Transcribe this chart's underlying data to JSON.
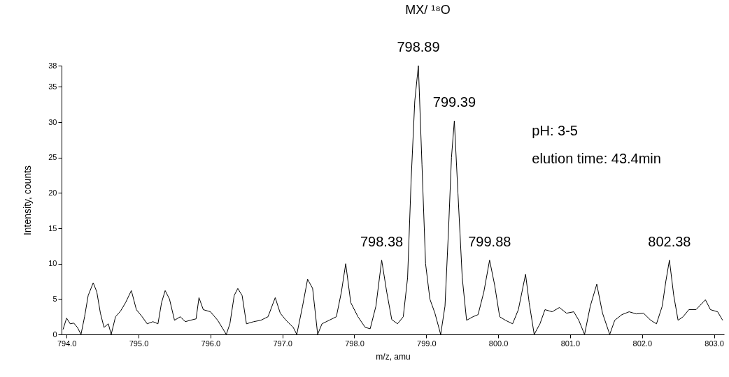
{
  "chart_data": {
    "type": "line",
    "title": "MX/ ¹⁸O",
    "xlabel": "m/z, amu",
    "ylabel": "Intensity, counts",
    "xlim": [
      793.93,
      803.14
    ],
    "ylim": [
      0,
      38
    ],
    "xticks": [
      {
        "value": 794,
        "label": "794.0"
      },
      {
        "value": 795,
        "label": "795.0"
      },
      {
        "value": 796,
        "label": "796.0"
      },
      {
        "value": 797,
        "label": "797.0"
      },
      {
        "value": 798,
        "label": "798.0"
      },
      {
        "value": 799,
        "label": "799.0"
      },
      {
        "value": 800,
        "label": "800.0"
      },
      {
        "value": 801,
        "label": "801.0"
      },
      {
        "value": 802,
        "label": "802.0"
      },
      {
        "value": 803,
        "label": "803.0"
      }
    ],
    "yticks": [
      0,
      5,
      10,
      15,
      20,
      25,
      30,
      35,
      38
    ],
    "grid": false,
    "marker": "none",
    "line_style": "solid",
    "series": [
      {
        "color": "#000000",
        "x": [
          793.95,
          794.0,
          794.05,
          794.1,
          794.15,
          794.2,
          794.25,
          794.3,
          794.37,
          794.42,
          794.47,
          794.52,
          794.58,
          794.62,
          794.68,
          794.75,
          794.82,
          794.9,
          794.97,
          795.05,
          795.12,
          795.2,
          795.27,
          795.32,
          795.37,
          795.43,
          795.5,
          795.58,
          795.65,
          795.72,
          795.8,
          795.84,
          795.9,
          796.0,
          796.1,
          796.22,
          796.27,
          796.33,
          796.38,
          796.44,
          796.5,
          796.6,
          796.7,
          796.8,
          796.9,
          796.97,
          797.05,
          797.15,
          797.2,
          797.28,
          797.35,
          797.42,
          797.49,
          797.55,
          797.65,
          797.75,
          797.82,
          797.88,
          797.95,
          798.05,
          798.15,
          798.22,
          798.3,
          798.38,
          798.45,
          798.52,
          798.6,
          798.68,
          798.74,
          798.79,
          798.84,
          798.89,
          798.94,
          798.99,
          799.05,
          799.12,
          799.2,
          799.26,
          799.31,
          799.35,
          799.39,
          799.44,
          799.5,
          799.56,
          799.65,
          799.72,
          799.8,
          799.88,
          799.95,
          800.02,
          800.1,
          800.2,
          800.28,
          800.33,
          800.38,
          800.43,
          800.5,
          800.58,
          800.65,
          800.75,
          800.85,
          800.95,
          801.05,
          801.12,
          801.2,
          801.28,
          801.37,
          801.45,
          801.55,
          801.62,
          801.72,
          801.82,
          801.92,
          802.02,
          802.12,
          802.2,
          802.28,
          802.33,
          802.38,
          802.44,
          802.5,
          802.57,
          802.65,
          802.75,
          802.88,
          802.95,
          803.05,
          803.12
        ],
        "values": [
          0.7,
          2.3,
          1.5,
          1.6,
          1.0,
          0,
          2.5,
          5.5,
          7.3,
          6.0,
          3.0,
          1.0,
          1.5,
          0,
          2.5,
          3.3,
          4.5,
          6.2,
          3.5,
          2.5,
          1.5,
          1.8,
          1.5,
          4.5,
          6.2,
          5.0,
          2.0,
          2.5,
          1.8,
          2.0,
          2.2,
          5.2,
          3.5,
          3.2,
          2.0,
          0,
          1.5,
          5.5,
          6.5,
          5.5,
          1.5,
          1.8,
          2.0,
          2.5,
          5.2,
          3.0,
          2.0,
          1.0,
          0,
          4.0,
          7.8,
          6.5,
          0,
          1.5,
          2.0,
          2.5,
          6.0,
          10.0,
          4.5,
          2.5,
          1.0,
          0.8,
          4.0,
          10.5,
          6.0,
          2.1,
          1.5,
          2.5,
          8.0,
          22.0,
          33.0,
          38.0,
          24.0,
          10.0,
          5.0,
          3.0,
          0,
          4.0,
          15.0,
          25.0,
          30.2,
          20.0,
          8.0,
          2.0,
          2.5,
          2.8,
          6.0,
          10.5,
          7.0,
          2.5,
          2.0,
          1.5,
          3.5,
          6.0,
          8.5,
          4.5,
          0,
          1.5,
          3.5,
          3.2,
          3.8,
          3.0,
          3.2,
          2.0,
          0,
          4.0,
          7.1,
          3.0,
          0,
          2.0,
          2.8,
          3.2,
          2.9,
          3.0,
          2.0,
          1.5,
          4.0,
          7.5,
          10.5,
          5.5,
          2.0,
          2.5,
          3.5,
          3.5,
          4.9,
          3.5,
          3.2,
          2.0
        ]
      }
    ],
    "annotations": [
      {
        "text": "798.89",
        "x": 798.89,
        "y": 38
      },
      {
        "text": "799.39",
        "x": 799.39,
        "y": 30.2
      },
      {
        "text": "798.38",
        "x": 798.38,
        "y": 10.5
      },
      {
        "text": "799.88",
        "x": 799.88,
        "y": 10.5
      },
      {
        "text": "802.38",
        "x": 802.38,
        "y": 10.5
      },
      "pH: 3-5",
      "elution time: 43.4min"
    ]
  }
}
